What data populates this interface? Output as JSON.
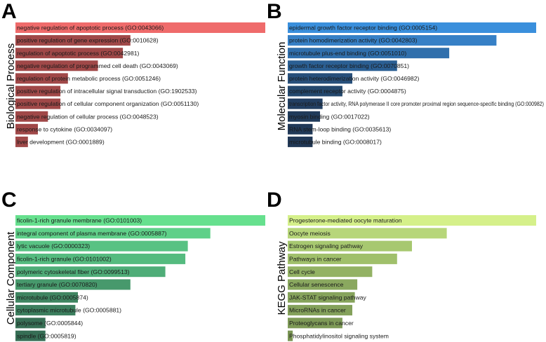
{
  "chart_data": [
    {
      "type": "bar",
      "orientation": "horizontal",
      "panel": "A",
      "title": "",
      "ylabel": "Biological Process",
      "xlabel": "",
      "categories": [
        "negative regulation of apoptotic process (GO:0043066)",
        "positive regulation of gene expression (GO:0010628)",
        "regulation of apoptotic process (GO:0042981)",
        "negative regulation of programmed cell death (GO:0043069)",
        "regulation of protein metabolic process (GO:0051246)",
        "positive regulation of intracellular signal transduction (GO:1902533)",
        "positive regulation of cellular component organization (GO:0051130)",
        "negative regulation of cellular process (GO:0048523)",
        "response to cytokine (GO:0034097)",
        "liver development (GO:0001889)"
      ],
      "values": [
        100,
        46,
        43,
        33,
        21,
        18,
        18,
        13,
        9,
        5
      ],
      "xlim": [
        0,
        100
      ],
      "colors": [
        "#ef6b6b",
        "#a04848",
        "#a04848",
        "#a04848",
        "#a04848",
        "#a04848",
        "#a04848",
        "#a04848",
        "#a04848",
        "#a04848"
      ]
    },
    {
      "type": "bar",
      "orientation": "horizontal",
      "panel": "B",
      "title": "",
      "ylabel": "Molecular Function",
      "xlabel": "",
      "categories": [
        "epidermal growth factor receptor binding (GO:0005154)",
        "protein homodimerization activity (GO:0042803)",
        "microtubule plus-end binding (GO:0051010)",
        "growth factor receptor binding (GO:0070851)",
        "protein heterodimerization activity (GO:0046982)",
        "complement receptor activity (GO:0004875)",
        "transcription factor activity, RNA polymerase II core promoter proximal region sequence-specific binding (GO:000982)",
        "myosin binding (GO:0017022)",
        "RNA stem-loop binding (GO:0035613)",
        "microtubule binding (GO:0008017)"
      ],
      "values": [
        100,
        84,
        65,
        44,
        26,
        22,
        14,
        13,
        10,
        10
      ],
      "xlim": [
        0,
        100
      ],
      "colors": [
        "#3a8fdc",
        "#3680c6",
        "#306fac",
        "#2b5f93",
        "#274f7a",
        "#24486d",
        "#223f62",
        "#213b5a",
        "#213958",
        "#213856"
      ]
    },
    {
      "type": "bar",
      "orientation": "horizontal",
      "panel": "C",
      "title": "",
      "ylabel": "Cellular Component",
      "xlabel": "",
      "categories": [
        "ficolin-1-rich granule membrane (GO:0101003)",
        "integral component of plasma membrane (GO:0005887)",
        "lytic vacuole (GO:0000323)",
        "ficolin-1-rich granule (GO:0101002)",
        "polymeric cytoskeletal fiber (GO:0099513)",
        "tertiary granule (GO:0070820)",
        "microtubule (GO:0005874)",
        "cytoplasmic microtubule (GO:0005881)",
        "polysome (GO:0005844)",
        "spindle (GO:0005819)"
      ],
      "values": [
        100,
        78,
        69,
        68,
        60,
        46,
        25,
        24,
        12,
        12
      ],
      "xlim": [
        0,
        100
      ],
      "colors": [
        "#66e08e",
        "#5fd089",
        "#58c283",
        "#55bb7f",
        "#4fad78",
        "#47996c",
        "#3f8561",
        "#3c7f5e",
        "#376f55",
        "#366e55"
      ]
    },
    {
      "type": "bar",
      "orientation": "horizontal",
      "panel": "D",
      "title": "",
      "ylabel": "KEGG Pathway",
      "xlabel": "",
      "categories": [
        "Progesterone-mediated oocyte maturation",
        "Oocyte meiosis",
        "Estrogen signaling pathway",
        "Pathways in cancer",
        "Cell cycle",
        "Cellular senescence",
        "JAK-STAT signaling pathway",
        "MicroRNAs in cancer",
        "Proteoglycans in cancer",
        "Phosphatidylinositol signaling system"
      ],
      "values": [
        100,
        64,
        50,
        44,
        34,
        28,
        27,
        26,
        22,
        2
      ],
      "xlim": [
        0,
        100
      ],
      "colors": [
        "#d5f08a",
        "#b7d67a",
        "#a7c870",
        "#a0c06b",
        "#93b264",
        "#8aa85f",
        "#86a35c",
        "#84a15b",
        "#7e9a57",
        "#7a9554"
      ]
    }
  ]
}
